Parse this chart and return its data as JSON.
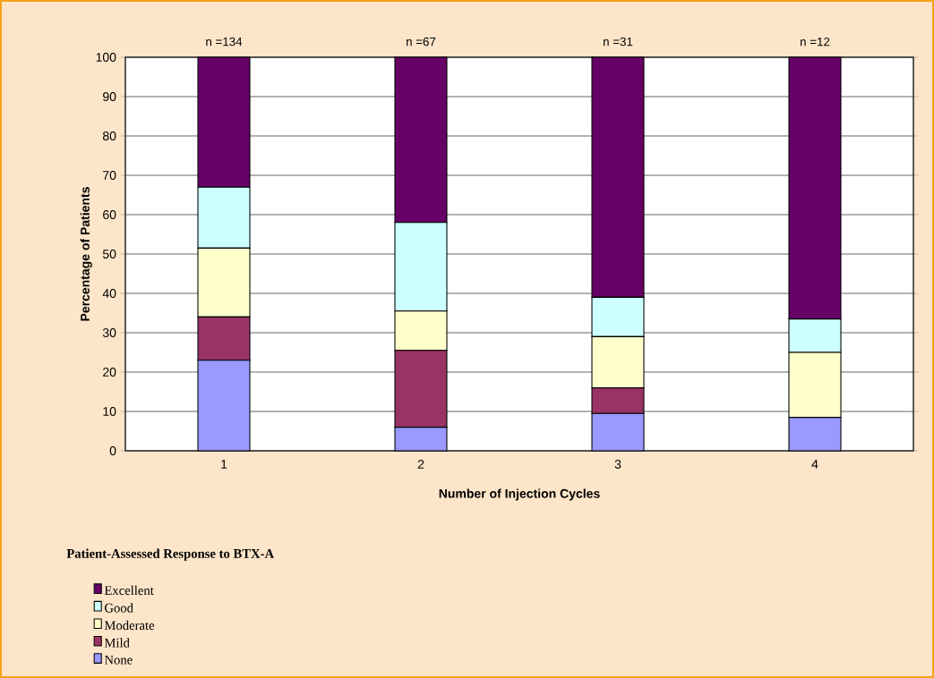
{
  "chart_data": {
    "type": "bar",
    "stacked": true,
    "xlabel": "Number of Injection Cycles",
    "ylabel": "Percentage of Patients",
    "legend_title": "Patient-Assessed Response to BTX-A",
    "categories": [
      "1",
      "2",
      "3",
      "4"
    ],
    "series": [
      {
        "name": "None",
        "color": "#9999ff",
        "values": [
          23,
          6,
          9.5,
          8.5
        ]
      },
      {
        "name": "Mild",
        "color": "#993366",
        "values": [
          11,
          19.5,
          6.5,
          0
        ]
      },
      {
        "name": "Moderate",
        "color": "#ffffcc",
        "values": [
          17.5,
          10,
          13,
          16.5
        ]
      },
      {
        "name": "Good",
        "color": "#ccffff",
        "values": [
          15.5,
          22.5,
          10,
          8.5
        ]
      },
      {
        "name": "Excellent",
        "color": "#660066",
        "values": [
          33,
          42,
          61,
          66.5
        ]
      }
    ],
    "ylim": [
      0,
      100
    ],
    "yticks": [
      0,
      10,
      20,
      30,
      40,
      50,
      60,
      70,
      80,
      90,
      100
    ],
    "grid": "y",
    "legend": "bottom left",
    "annotations": [
      {
        "text": "n =134",
        "x": "1",
        "y": 100
      },
      {
        "text": "n =67",
        "x": "2",
        "y": 100
      },
      {
        "text": "n =31",
        "x": "3",
        "y": 100
      },
      {
        "text": "n =12",
        "x": "4",
        "y": 100
      }
    ]
  }
}
